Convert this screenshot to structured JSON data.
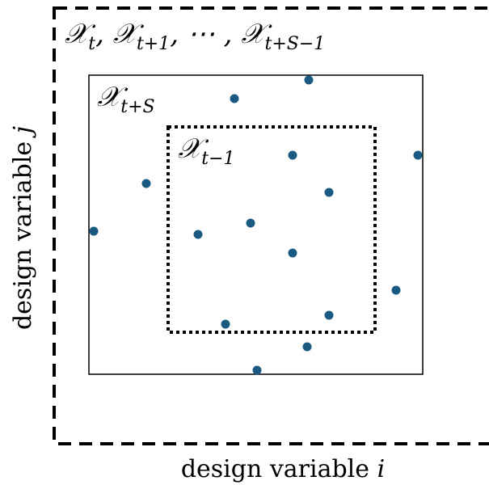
{
  "regions": {
    "outer": {
      "sym": "𝒳",
      "s1": "t",
      "mid1": ", 𝒳",
      "s2": "t+1",
      "mid2": ", ⋯ , 𝒳",
      "s3": "t+S−1"
    },
    "middle": {
      "sym": "𝒳",
      "sub": "t+S"
    },
    "inner": {
      "sym": "𝒳",
      "sub": "t−1"
    }
  },
  "axes": {
    "x_label_text": "design variable ",
    "x_label_var": "i",
    "y_label_text": "design variable ",
    "y_label_var": "j"
  },
  "colors": {
    "point": "#1a5a82",
    "line": "#000000"
  }
}
